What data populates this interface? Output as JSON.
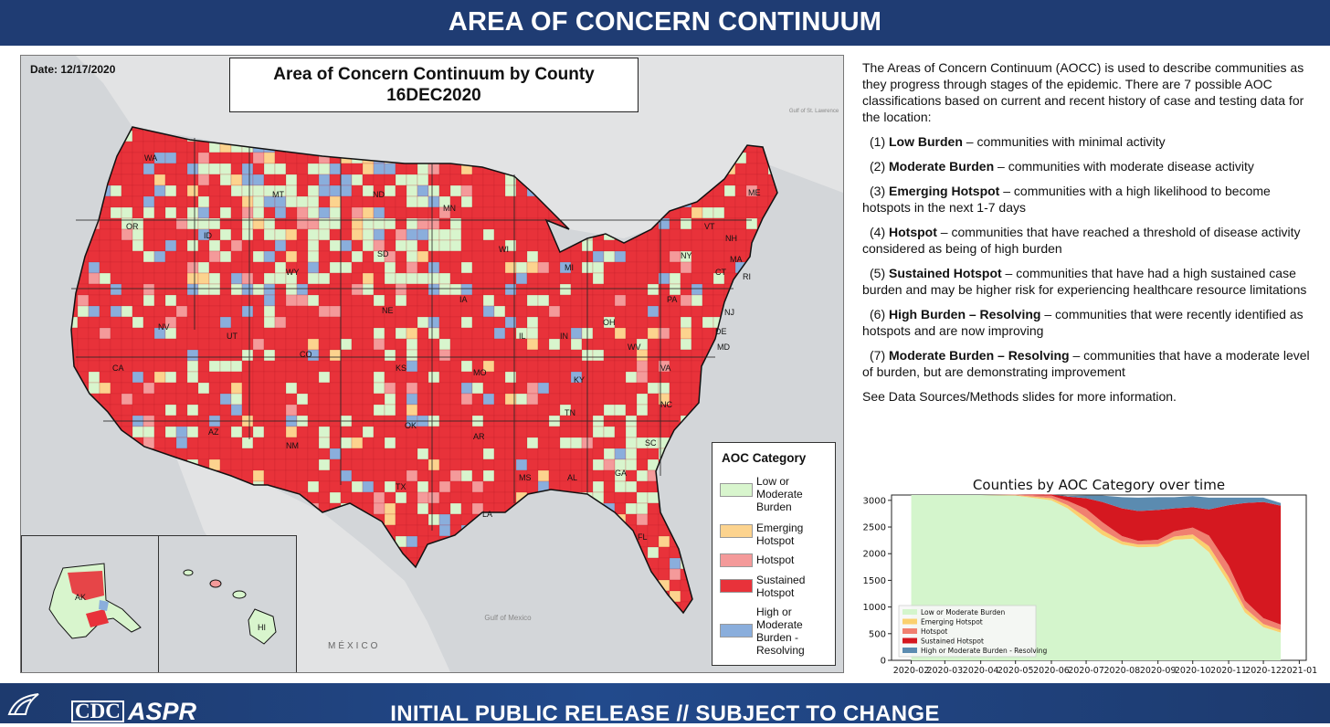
{
  "header": {
    "title": "AREA OF CONCERN CONTINUUM"
  },
  "map": {
    "date_label": "Date: 12/17/2020",
    "title_line1": "Area of Concern Continuum by County",
    "title_line2": "16DEC2020",
    "state_labels": [
      "WA",
      "OR",
      "CA",
      "ID",
      "NV",
      "MT",
      "WY",
      "UT",
      "AZ",
      "CO",
      "NM",
      "ND",
      "SD",
      "NE",
      "KS",
      "OK",
      "TX",
      "MN",
      "IA",
      "MO",
      "AR",
      "LA",
      "WI",
      "IL",
      "MS",
      "MI",
      "IN",
      "KY",
      "TN",
      "AL",
      "GA",
      "OH",
      "WV",
      "VA",
      "NC",
      "SC",
      "FL",
      "PA",
      "NY",
      "ME",
      "VT",
      "NH",
      "MA",
      "CT",
      "RI",
      "NJ",
      "DE",
      "MD",
      "AK",
      "HI"
    ],
    "place_labels": [
      "Gulf of Mexico",
      "MÉXICO",
      "Gulf of St. Lawrence"
    ],
    "legend": {
      "title": "AOC Category",
      "items": [
        {
          "label": "Low or Moderate Burden",
          "color": "#d8f5cd"
        },
        {
          "label": "Emerging Hotspot",
          "color": "#fcd38e"
        },
        {
          "label": "Hotspot",
          "color": "#f49a9a"
        },
        {
          "label": "Sustained Hotspot",
          "color": "#e8323a"
        },
        {
          "label": "High or Moderate Burden - Resolving",
          "color": "#8aaedc"
        }
      ]
    }
  },
  "description": {
    "intro": "The Areas of Concern Continuum (AOCC) is used to describe communities as they progress through stages of the epidemic. There are 7 possible AOC classifications based on current and recent history of case and testing data for the location:",
    "items": [
      {
        "num": "(1)",
        "term": "Low Burden",
        "text": " – communities with minimal activity"
      },
      {
        "num": "(2)",
        "term": "Moderate Burden",
        "text": " – communities with moderate disease activity"
      },
      {
        "num": "(3)",
        "term": "Emerging Hotspot",
        "text": " – communities with a high likelihood to become hotspots in the next 1-7 days"
      },
      {
        "num": "(4)",
        "term": "Hotspot",
        "text": " – communities that have reached a threshold of disease activity considered as being of high burden"
      },
      {
        "num": "(5)",
        "term": "Sustained Hotspot",
        "text": " – communities that have had a high sustained case burden and may be higher risk for experiencing healthcare resource limitations"
      },
      {
        "num": "(6)",
        "term": "High Burden – Resolving",
        "text": " – communities that were recently identified as hotspots and are now improving"
      },
      {
        "num": "(7)",
        "term": "Moderate Burden – Resolving",
        "text": " – communities that have a moderate level of burden, but are demonstrating improvement"
      }
    ],
    "outro": "See Data Sources/Methods slides for more information."
  },
  "chart_data": {
    "type": "area",
    "title": "Counties by AOC Category over time",
    "xlabel": "",
    "ylabel": "",
    "x_ticks": [
      "2020-02",
      "2020-03",
      "2020-04",
      "2020-05",
      "2020-06",
      "2020-07",
      "2020-08",
      "2020-09",
      "2020-10",
      "2020-11",
      "2020-12",
      "2021-01"
    ],
    "y_ticks": [
      0,
      500,
      1000,
      1500,
      2000,
      2500,
      3000
    ],
    "ylim": [
      0,
      3100
    ],
    "xlim": [
      "2020-01-15",
      "2021-01-07"
    ],
    "x": [
      "2020-02-01",
      "2020-03-01",
      "2020-04-01",
      "2020-05-01",
      "2020-06-01",
      "2020-06-15",
      "2020-07-01",
      "2020-07-15",
      "2020-08-01",
      "2020-08-15",
      "2020-09-01",
      "2020-09-15",
      "2020-10-01",
      "2020-10-15",
      "2020-11-01",
      "2020-11-15",
      "2020-12-01",
      "2020-12-16"
    ],
    "stacked": true,
    "legend_position": "lower-left",
    "series": [
      {
        "name": "Low or Moderate Burden",
        "color": "#d4f5cc",
        "values": [
          3100,
          3100,
          3100,
          3090,
          3000,
          2850,
          2580,
          2350,
          2170,
          2120,
          2130,
          2260,
          2280,
          2030,
          1450,
          900,
          620,
          520
        ]
      },
      {
        "name": "Emerging Hotspot",
        "color": "#fad06f",
        "values": [
          0,
          0,
          0,
          8,
          40,
          60,
          100,
          90,
          60,
          50,
          50,
          60,
          80,
          110,
          110,
          80,
          60,
          50
        ]
      },
      {
        "name": "Hotspot",
        "color": "#f08070",
        "values": [
          0,
          0,
          0,
          10,
          50,
          80,
          160,
          150,
          100,
          70,
          80,
          100,
          130,
          200,
          220,
          140,
          110,
          100
        ]
      },
      {
        "name": "Sustained Hotspot",
        "color": "#d51820",
        "values": [
          0,
          0,
          0,
          0,
          20,
          80,
          200,
          380,
          520,
          560,
          560,
          430,
          380,
          490,
          1130,
          1830,
          2180,
          2230
        ]
      },
      {
        "name": "High or Moderate Burden - Resolving",
        "color": "#5b8bb0",
        "values": [
          0,
          0,
          0,
          0,
          0,
          10,
          50,
          120,
          210,
          250,
          240,
          210,
          210,
          220,
          140,
          100,
          80,
          50
        ]
      }
    ]
  },
  "footer": {
    "release_text": "INITIAL PUBLIC RELEASE // SUBJECT TO CHANGE",
    "logos": [
      "HHS",
      "CDC",
      "ASPR"
    ]
  },
  "colors": {
    "header_bg": "#1f3c73",
    "sustained": "#e8323a",
    "low": "#d8f5cd"
  }
}
